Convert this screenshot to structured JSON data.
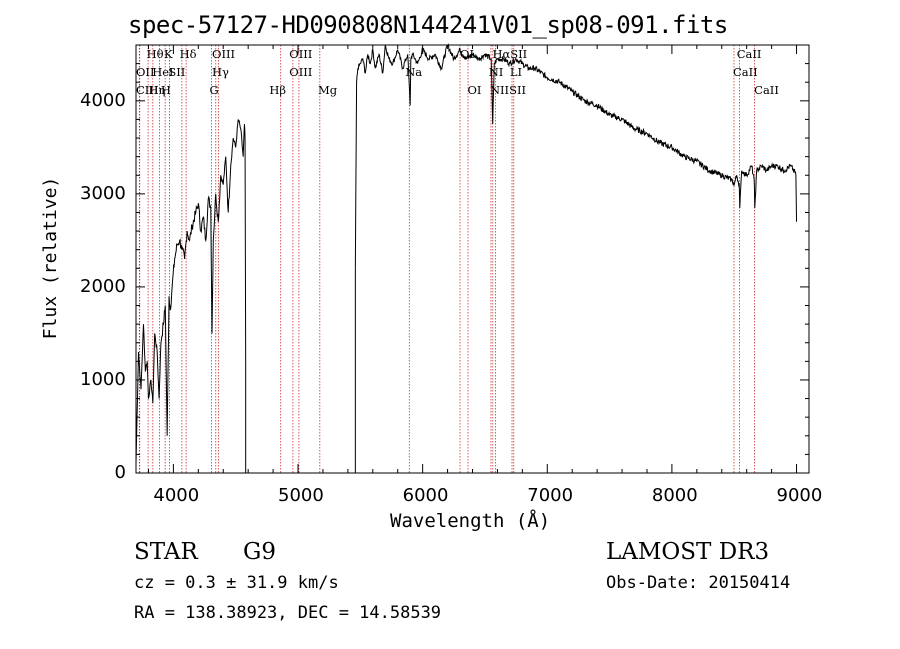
{
  "chart_data": {
    "type": "line",
    "title": "spec-57127-HD090808N144241V01_sp08-091.fits",
    "xlabel": "Wavelength (Å)",
    "ylabel": "Flux (relative)",
    "xlim": [
      3700,
      9100
    ],
    "ylim": [
      0,
      4600
    ],
    "xticks": [
      4000,
      5000,
      6000,
      7000,
      8000,
      9000
    ],
    "yticks": [
      0,
      1000,
      2000,
      3000,
      4000
    ],
    "grid": false,
    "series": [
      {
        "segments": [
          {
            "x": [
              3700,
              3720,
              3740,
              3760,
              3775,
              3790,
              3800,
              3820,
              3835,
              3850,
              3870,
              3885,
              3900,
              3920,
              3935,
              3950,
              3965,
              3975,
              3990,
              4010,
              4030,
              4050,
              4070,
              4090,
              4110,
              4130,
              4150,
              4180,
              4200,
              4220,
              4240,
              4260,
              4280,
              4300,
              4310,
              4320,
              4340,
              4360,
              4380,
              4400,
              4420,
              4440,
              4460,
              4480,
              4500,
              4520,
              4540,
              4560,
              4570,
              4575,
              4580
            ],
            "y": [
              100,
              1300,
              900,
              1600,
              1100,
              1200,
              800,
              1000,
              750,
              1500,
              1300,
              800,
              1400,
              1600,
              1800,
              400,
              1900,
              1750,
              2000,
              2300,
              2450,
              2500,
              2400,
              2300,
              2600,
              2500,
              2650,
              2800,
              2900,
              2600,
              2750,
              2500,
              2950,
              2850,
              1500,
              2500,
              3000,
              2700,
              3200,
              3100,
              3400,
              2800,
              3300,
              3600,
              3500,
              3800,
              3700,
              3400,
              3750,
              3600,
              1200
            ]
          },
          {
            "x": [
              5460,
              5470,
              5480,
              5500,
              5520,
              5540,
              5560,
              5580,
              5600,
              5620,
              5650,
              5680,
              5700,
              5730,
              5760,
              5800,
              5840,
              5880,
              5900,
              5905,
              5920,
              5960,
              6000,
              6050,
              6100,
              6150,
              6200,
              6250,
              6300,
              6350,
              6400,
              6450,
              6500,
              6550,
              6562,
              6575,
              6600,
              6650,
              6700,
              6750,
              6800,
              6850,
              6900,
              7000,
              7100,
              7200,
              7300,
              7400,
              7500,
              7600,
              7700,
              7800,
              7900,
              8000,
              8100,
              8200,
              8300,
              8400,
              8480,
              8500,
              8520,
              8540,
              8545,
              8560,
              8600,
              8640,
              8660,
              8665,
              8680,
              8720,
              8760,
              8800,
              8850,
              8900,
              8950,
              8980,
              8995,
              9000
            ],
            "y": [
              2200,
              4200,
              4350,
              4400,
              4450,
              4300,
              4500,
              4400,
              4550,
              4350,
              4500,
              4300,
              4600,
              4450,
              4400,
              4550,
              4350,
              4500,
              3950,
              4450,
              4500,
              4400,
              4550,
              4450,
              4500,
              4350,
              4600,
              4450,
              4550,
              4450,
              4500,
              4450,
              4500,
              4450,
              3750,
              4400,
              4450,
              4450,
              4400,
              4450,
              4400,
              4350,
              4350,
              4250,
              4200,
              4100,
              4000,
              3950,
              3850,
              3800,
              3700,
              3650,
              3550,
              3500,
              3400,
              3350,
              3250,
              3200,
              3150,
              3100,
              3200,
              3100,
              2850,
              3250,
              3200,
              3300,
              3150,
              2850,
              3250,
              3300,
              3250,
              3300,
              3300,
              3250,
              3300,
              3250,
              3200,
              2700
            ]
          }
        ]
      }
    ],
    "spectral_lines": [
      {
        "label": "Hθ",
        "x": 3797
      },
      {
        "label": "Hη",
        "x": 3835
      },
      {
        "label": "HeI",
        "x": 3889
      },
      {
        "label": "K",
        "x": 3934
      },
      {
        "label": "H",
        "x": 3968
      },
      {
        "label": "Hδ",
        "x": 4102
      },
      {
        "label": "SII",
        "x": 4068
      },
      {
        "label": "OIII",
        "x": 4363
      },
      {
        "label": "Hγ",
        "x": 4340
      },
      {
        "label": "G",
        "x": 4305
      },
      {
        "label": "Hβ",
        "x": 4861
      },
      {
        "label": "OIII",
        "x": 4959
      },
      {
        "label": "OIII",
        "x": 5007
      },
      {
        "label": "Mg",
        "x": 5175
      },
      {
        "label": "Na",
        "x": 5893
      },
      {
        "label": "OI",
        "x": 6300
      },
      {
        "label": "OI",
        "x": 6364
      },
      {
        "label": "Hα",
        "x": 6563
      },
      {
        "label": "NII",
        "x": 6548
      },
      {
        "label": "NII",
        "x": 6584
      },
      {
        "label": "SII",
        "x": 6717
      },
      {
        "label": "SII",
        "x": 6731
      },
      {
        "label": "CaII",
        "x": 8498
      },
      {
        "label": "CaII",
        "x": 8542
      },
      {
        "label": "CaII",
        "x": 8662
      },
      {
        "label": "OII",
        "x": 3727
      },
      {
        "label": "CIII",
        "x": 3730
      }
    ],
    "line_labels_text": [
      {
        "text": "Hθ",
        "x": 3785,
        "row": 1
      },
      {
        "text": "K",
        "x": 3925,
        "row": 1
      },
      {
        "text": "Hδ",
        "x": 4050,
        "row": 1
      },
      {
        "text": "OIII",
        "x": 4310,
        "row": 1
      },
      {
        "text": "OIII",
        "x": 4930,
        "row": 1
      },
      {
        "text": "OI",
        "x": 6300,
        "row": 1
      },
      {
        "text": "HαSII",
        "x": 6560,
        "row": 1
      },
      {
        "text": "CaII",
        "x": 8520,
        "row": 1
      },
      {
        "text": "OII",
        "x": 3700,
        "row": 2
      },
      {
        "text": "HeI",
        "x": 3830,
        "row": 2
      },
      {
        "text": "SII",
        "x": 3960,
        "row": 2
      },
      {
        "text": "Hγ",
        "x": 4310,
        "row": 2
      },
      {
        "text": "OIII",
        "x": 4930,
        "row": 2
      },
      {
        "text": "Na",
        "x": 5860,
        "row": 2
      },
      {
        "text": "NI",
        "x": 6530,
        "row": 2
      },
      {
        "text": "LI",
        "x": 6700,
        "row": 2
      },
      {
        "text": "CaII",
        "x": 8490,
        "row": 2
      },
      {
        "text": "CIII",
        "x": 3700,
        "row": 3
      },
      {
        "text": "Hη",
        "x": 3800,
        "row": 3
      },
      {
        "text": "H",
        "x": 3900,
        "row": 3
      },
      {
        "text": "G",
        "x": 4290,
        "row": 3
      },
      {
        "text": "Hβ",
        "x": 4770,
        "row": 3
      },
      {
        "text": "Mg",
        "x": 5160,
        "row": 3
      },
      {
        "text": "OI",
        "x": 6360,
        "row": 3
      },
      {
        "text": "NIISII",
        "x": 6540,
        "row": 3
      },
      {
        "text": "CaII",
        "x": 8660,
        "row": 3
      }
    ]
  },
  "footer": {
    "object_type": "STAR",
    "subclass": "G9",
    "survey": "LAMOST DR3",
    "cz": "cz = 0.3 ± 31.9 km/s",
    "obs_date": "Obs-Date: 20150414",
    "coords": "RA = 138.38923, DEC =  14.58539"
  },
  "colors": {
    "line": "#000000",
    "spectral_marker": "#cc3333"
  }
}
